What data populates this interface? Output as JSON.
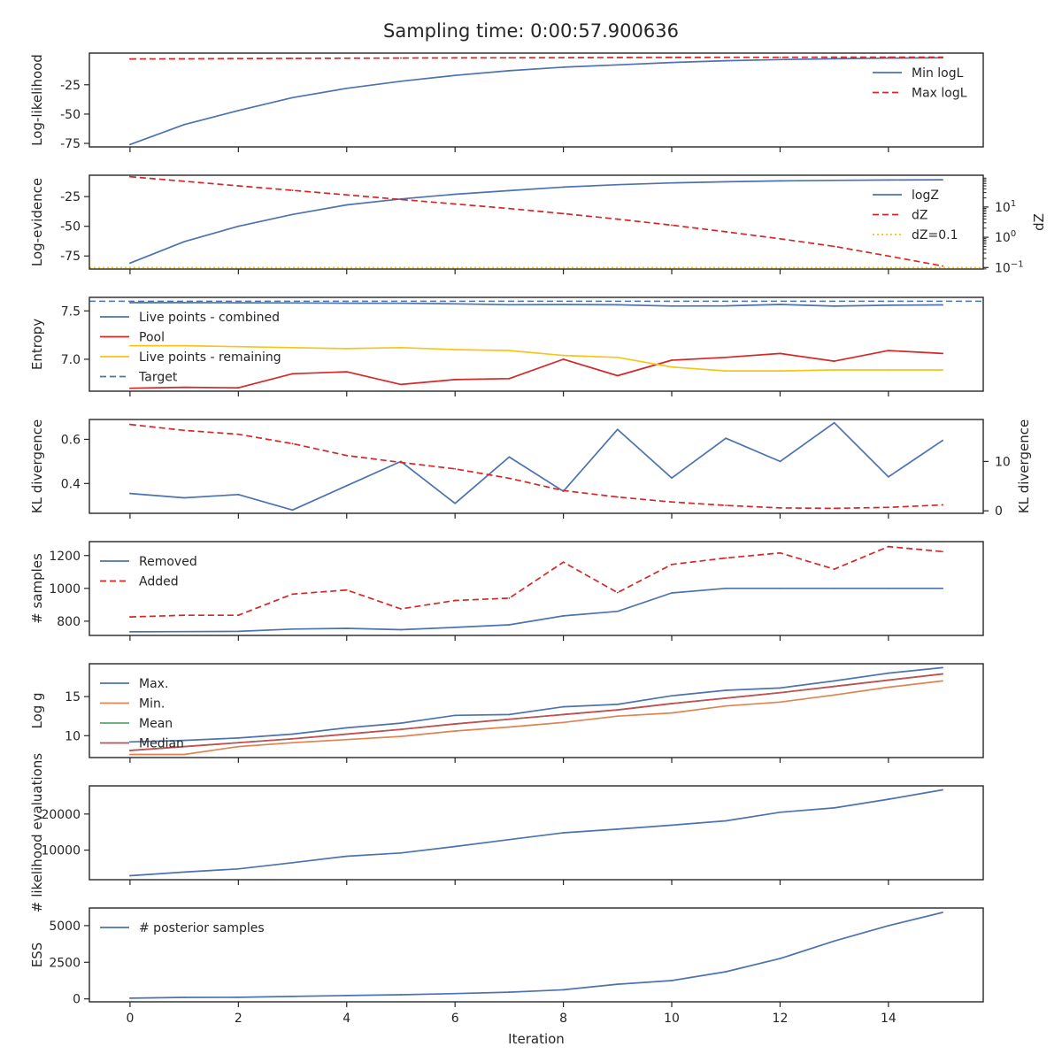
{
  "title": "Sampling time: 0:00:57.900636",
  "xlabel": "Iteration",
  "x_ticks": [
    0,
    2,
    4,
    6,
    8,
    10,
    12,
    14
  ],
  "xlim": [
    -0.75,
    15.75
  ],
  "colors": {
    "blue": "#4c72b0",
    "red": "#d62728",
    "orange": "#dd8452",
    "green": "#55a868",
    "brown_red": "#c44e52",
    "yellow": "#f5c518",
    "axis": "#262626"
  },
  "chart_data": [
    {
      "id": "loglikelihood",
      "type": "line",
      "ylabel": "Log-likelihood",
      "ylim": [
        -78,
        2
      ],
      "yticks": [
        -75,
        -50,
        -25
      ],
      "legend": {
        "loc": "upper right"
      },
      "x": [
        0,
        1,
        2,
        3,
        4,
        5,
        6,
        7,
        8,
        9,
        10,
        11,
        12,
        13,
        14,
        15
      ],
      "series": [
        {
          "name": "Min logL",
          "color": "blue",
          "dash": "solid",
          "values": [
            -76,
            -59,
            -47,
            -36,
            -28,
            -22,
            -17,
            -13,
            -10,
            -8,
            -6,
            -4.5,
            -3.5,
            -2.8,
            -2.3,
            -2
          ]
        },
        {
          "name": "Max logL",
          "color": "red",
          "dash": "dashed",
          "values": [
            -3,
            -2.9,
            -2.7,
            -2.5,
            -2.4,
            -2.2,
            -2.1,
            -2,
            -1.9,
            -1.8,
            -1.7,
            -1.6,
            -1.6,
            -1.5,
            -1.5,
            -1.5
          ]
        }
      ]
    },
    {
      "id": "logevidence",
      "type": "line",
      "ylabel": "Log-evidence",
      "ylabel_right": "dZ",
      "ylim": [
        -86,
        -7
      ],
      "yticks": [
        -75,
        -50,
        -25
      ],
      "right_scale": "log",
      "right_ylim_log10": [
        -1.05,
        2.05
      ],
      "right_ticks": [
        {
          "label": "10",
          "exp": "−1",
          "log10": -1
        },
        {
          "label": "10",
          "exp": "0",
          "log10": 0
        },
        {
          "label": "10",
          "exp": "1",
          "log10": 1
        }
      ],
      "legend": {
        "loc": "upper right"
      },
      "x": [
        0,
        1,
        2,
        3,
        4,
        5,
        6,
        7,
        8,
        9,
        10,
        11,
        12,
        13,
        14,
        15
      ],
      "series": [
        {
          "name": "logZ",
          "color": "blue",
          "dash": "solid",
          "axis": "left",
          "values": [
            -81,
            -63,
            -50,
            -40,
            -32,
            -27,
            -23,
            -20,
            -17,
            -15,
            -13.5,
            -12.5,
            -11.8,
            -11.3,
            -11,
            -10.8
          ]
        },
        {
          "name": "dZ",
          "color": "red",
          "dash": "dashed",
          "axis": "right",
          "values": [
            2.0,
            1.85,
            1.7,
            1.55,
            1.4,
            1.25,
            1.1,
            0.95,
            0.78,
            0.6,
            0.4,
            0.18,
            -0.05,
            -0.3,
            -0.62,
            -0.95
          ]
        },
        {
          "name": "dZ=0.1",
          "color": "yellow",
          "dash": "dotted",
          "axis": "right",
          "hline": -1
        }
      ]
    },
    {
      "id": "entropy",
      "type": "line",
      "ylabel": "Entropy",
      "ylim": [
        6.67,
        7.64
      ],
      "yticks": [
        7.0,
        7.5
      ],
      "ytick_format": "1dp",
      "legend": {
        "loc": "upper left"
      },
      "x": [
        0,
        1,
        2,
        3,
        4,
        5,
        6,
        7,
        8,
        9,
        10,
        11,
        12,
        13,
        14,
        15
      ],
      "series": [
        {
          "name": "Live points - combined",
          "color": "blue",
          "dash": "solid",
          "values": [
            7.585,
            7.585,
            7.584,
            7.582,
            7.58,
            7.579,
            7.573,
            7.564,
            7.566,
            7.563,
            7.55,
            7.552,
            7.567,
            7.549,
            7.559,
            7.562
          ]
        },
        {
          "name": "Pool",
          "color": "red",
          "dash": "solid",
          "values": [
            6.7,
            6.71,
            6.705,
            6.85,
            6.87,
            6.74,
            6.79,
            6.8,
            7.0,
            6.83,
            6.99,
            7.02,
            7.06,
            6.98,
            7.09,
            7.06
          ]
        },
        {
          "name": "Live points - remaining",
          "color": "yellow",
          "dash": "solid",
          "values": [
            7.14,
            7.14,
            7.13,
            7.12,
            7.11,
            7.12,
            7.1,
            7.09,
            7.04,
            7.02,
            6.92,
            6.88,
            6.88,
            6.89,
            6.89,
            6.89
          ]
        },
        {
          "name": "Target",
          "color": "blue",
          "dash": "dashed",
          "hline": 7.6,
          "span": "full"
        }
      ]
    },
    {
      "id": "kldivergence",
      "type": "line",
      "ylabel": "KL divergence",
      "ylabel_right": "KL divergence",
      "ylim": [
        0.265,
        0.69
      ],
      "yticks": [
        0.4,
        0.6
      ],
      "ytick_format": "1dp",
      "right_ylim": [
        -0.5,
        18.5
      ],
      "right_ticks": [
        {
          "label": "0",
          "value": 0
        },
        {
          "label": "10",
          "value": 10
        }
      ],
      "x": [
        0,
        1,
        2,
        3,
        4,
        5,
        6,
        7,
        8,
        9,
        10,
        11,
        12,
        13,
        14,
        15
      ],
      "series": [
        {
          "color": "blue",
          "dash": "solid",
          "axis": "left",
          "values": [
            0.355,
            0.335,
            0.35,
            0.28,
            0.39,
            0.5,
            0.31,
            0.52,
            0.365,
            0.645,
            0.425,
            0.605,
            0.5,
            0.675,
            0.43,
            0.595
          ]
        },
        {
          "color": "red",
          "dash": "dashed",
          "axis": "right",
          "values": [
            17.5,
            16.3,
            15.5,
            13.6,
            11.2,
            9.8,
            8.5,
            6.6,
            4.1,
            2.8,
            1.8,
            1.1,
            0.6,
            0.5,
            0.7,
            1.2
          ]
        }
      ]
    },
    {
      "id": "samples",
      "type": "line",
      "ylabel": "# samples",
      "ylim": [
        713,
        1285
      ],
      "yticks": [
        800,
        1000,
        1200
      ],
      "legend": {
        "loc": "upper left"
      },
      "x": [
        0,
        1,
        2,
        3,
        4,
        5,
        6,
        7,
        8,
        9,
        10,
        11,
        12,
        13,
        14,
        15
      ],
      "series": [
        {
          "name": "Removed",
          "color": "blue",
          "dash": "solid",
          "values": [
            735,
            736,
            738,
            752,
            756,
            748,
            762,
            778,
            832,
            860,
            972,
            1000,
            1000,
            1000,
            1000,
            1000
          ]
        },
        {
          "name": "Added",
          "color": "red",
          "dash": "dashed",
          "values": [
            826,
            836,
            836,
            965,
            990,
            875,
            926,
            940,
            1160,
            974,
            1146,
            1185,
            1216,
            1117,
            1255,
            1224
          ]
        }
      ]
    },
    {
      "id": "logg",
      "type": "line",
      "ylabel": "Log g",
      "ylim": [
        7.2,
        19.2
      ],
      "yticks": [
        10,
        15
      ],
      "legend": {
        "loc": "upper left"
      },
      "x": [
        0,
        1,
        2,
        3,
        4,
        5,
        6,
        7,
        8,
        9,
        10,
        11,
        12,
        13,
        14,
        15
      ],
      "series": [
        {
          "name": "Max.",
          "color": "blue",
          "dash": "solid",
          "values": [
            9.2,
            9.4,
            9.7,
            10.2,
            11.0,
            11.6,
            12.6,
            12.7,
            13.7,
            14.0,
            15.1,
            15.8,
            16.1,
            17.0,
            18.0,
            18.7
          ]
        },
        {
          "name": "Min.",
          "color": "orange",
          "dash": "solid",
          "values": [
            7.6,
            7.6,
            8.6,
            9.1,
            9.5,
            9.9,
            10.6,
            11.1,
            11.7,
            12.5,
            12.9,
            13.8,
            14.3,
            15.2,
            16.2,
            17.0
          ]
        },
        {
          "name": "Mean",
          "color": "green",
          "dash": "solid",
          "values": [
            8.1,
            8.6,
            9.1,
            9.6,
            10.2,
            10.8,
            11.5,
            12.1,
            12.7,
            13.3,
            14.1,
            14.8,
            15.5,
            16.3,
            17.1,
            17.9
          ]
        },
        {
          "name": "Median",
          "color": "brown_red",
          "dash": "solid",
          "values": [
            8.1,
            8.6,
            9.1,
            9.6,
            10.2,
            10.8,
            11.5,
            12.1,
            12.7,
            13.3,
            14.1,
            14.8,
            15.5,
            16.3,
            17.1,
            17.9
          ]
        }
      ]
    },
    {
      "id": "likelihoodevals",
      "type": "line",
      "ylabel": "# likelihood evaluations",
      "ylim": [
        1800,
        27800
      ],
      "yticks": [
        10000,
        20000
      ],
      "x": [
        0,
        1,
        2,
        3,
        4,
        5,
        6,
        7,
        8,
        9,
        10,
        11,
        12,
        13,
        14,
        15
      ],
      "series": [
        {
          "color": "blue",
          "dash": "solid",
          "values": [
            2900,
            3900,
            4800,
            6500,
            8300,
            9200,
            11000,
            12900,
            14800,
            15800,
            16900,
            18100,
            20500,
            21700,
            24100,
            26700
          ]
        }
      ]
    },
    {
      "id": "ess",
      "type": "line",
      "ylabel": "ESS",
      "ylim": [
        -200,
        6200
      ],
      "yticks": [
        0,
        2500,
        5000
      ],
      "legend": {
        "loc": "upper left"
      },
      "x": [
        0,
        1,
        2,
        3,
        4,
        5,
        6,
        7,
        8,
        9,
        10,
        11,
        12,
        13,
        14,
        15
      ],
      "series": [
        {
          "name": "# posterior samples",
          "color": "blue",
          "dash": "solid",
          "values": [
            50,
            100,
            110,
            170,
            230,
            280,
            360,
            460,
            620,
            1000,
            1250,
            1850,
            2750,
            3950,
            5000,
            5900
          ]
        }
      ]
    }
  ]
}
